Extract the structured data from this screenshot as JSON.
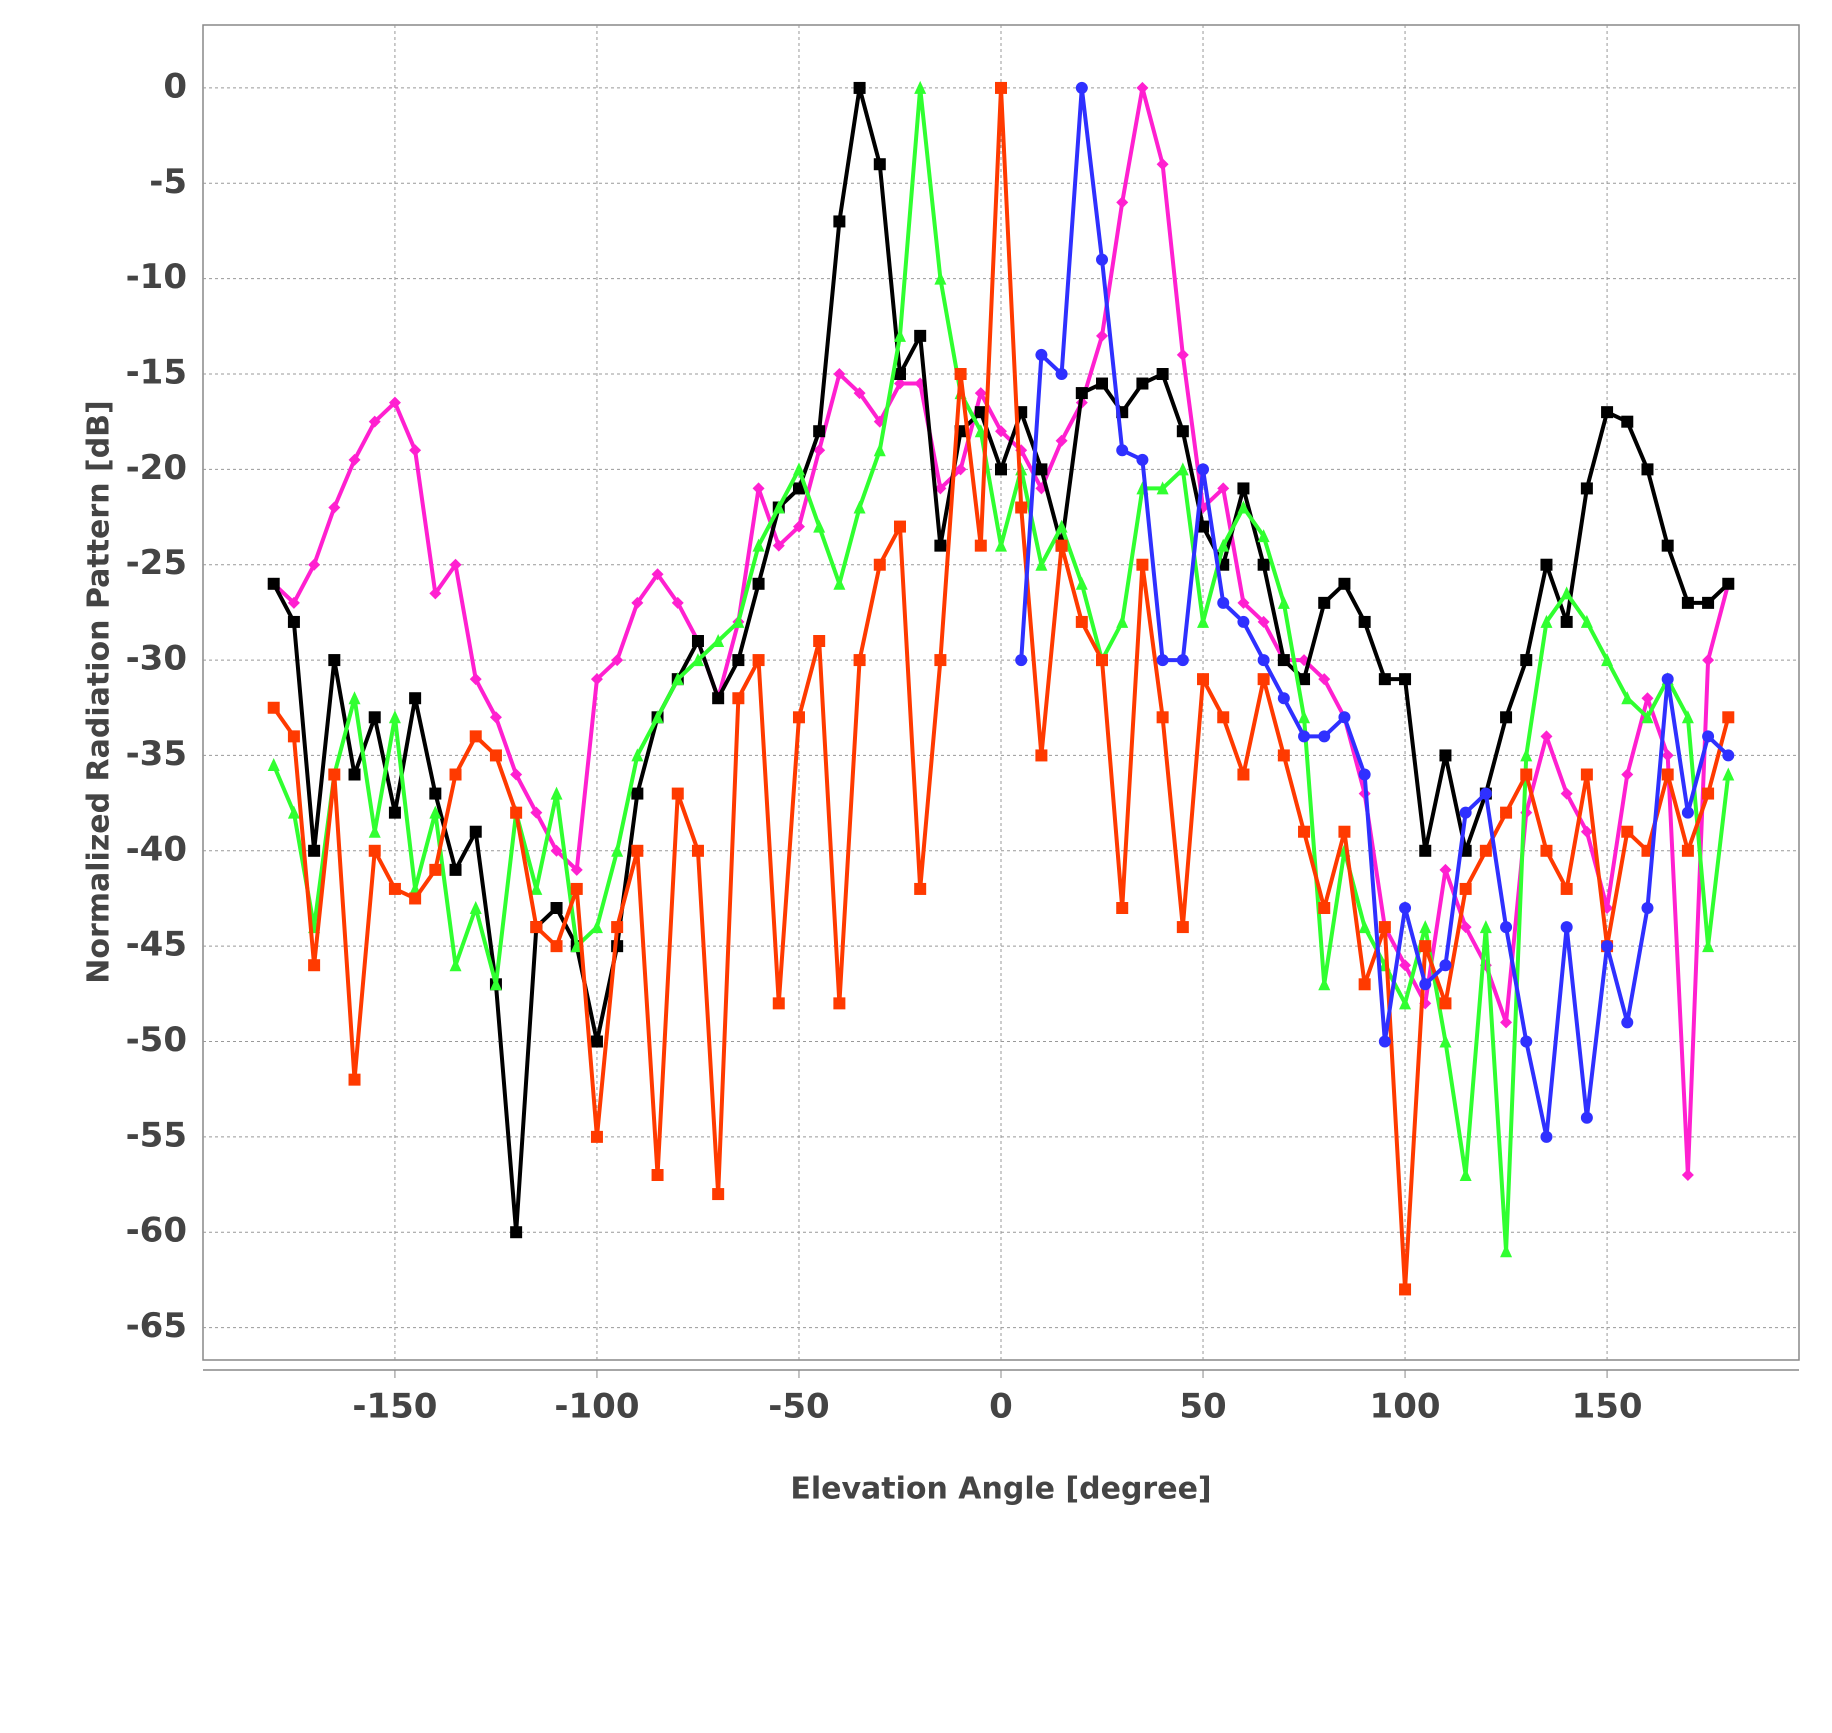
{
  "chart_data": {
    "type": "line",
    "x_label": "Elevation Angle [degree]",
    "y_label": "Normalized Radiation Pattern [dB]",
    "xlim": [
      -197.5,
      197.5
    ],
    "ylim": [
      -66.7,
      3.3
    ],
    "xticks": [
      -150,
      -100,
      -50,
      0,
      50,
      100,
      150
    ],
    "yticks": [
      0,
      -5,
      -10,
      -15,
      -20,
      -25,
      -30,
      -35,
      -40,
      -45,
      -50,
      -55,
      -60,
      -65
    ],
    "grid": true,
    "x": [
      -180,
      -175,
      -170,
      -165,
      -160,
      -155,
      -150,
      -145,
      -140,
      -135,
      -130,
      -125,
      -120,
      -115,
      -110,
      -105,
      -100,
      -95,
      -90,
      -85,
      -80,
      -75,
      -70,
      -65,
      -60,
      -55,
      -50,
      -45,
      -40,
      -35,
      -30,
      -25,
      -20,
      -15,
      -10,
      -5,
      0,
      5,
      10,
      15,
      20,
      25,
      30,
      35,
      40,
      45,
      50,
      55,
      60,
      65,
      70,
      75,
      80,
      85,
      90,
      95,
      100,
      105,
      110,
      115,
      120,
      125,
      130,
      135,
      140,
      145,
      150,
      155,
      160,
      165,
      170,
      175,
      180
    ],
    "series": [
      {
        "color": "#ff20d0",
        "marker": "diamond",
        "values": [
          -26,
          -27,
          -25,
          -22,
          -19.5,
          -17.5,
          -16.5,
          -19,
          -26.5,
          -25,
          -31,
          -33,
          -36,
          -38,
          -40,
          -41,
          -31,
          -30,
          -27,
          -25.5,
          -27,
          -29,
          -32,
          -28,
          -21,
          -24,
          -23,
          -19,
          -15,
          -16,
          -17.5,
          -15.5,
          -15.5,
          -21,
          -20,
          -16,
          -18,
          -19,
          -21,
          -18.5,
          -16.5,
          -13,
          -6,
          0,
          -4,
          -14,
          -22,
          -21,
          -27,
          -28,
          -30,
          -30,
          -31,
          -33,
          -37,
          -44,
          -46,
          -48,
          -41,
          -44,
          -46,
          -49,
          -38,
          -34,
          -37,
          -39,
          -43,
          -36,
          -32,
          -35,
          -57,
          -30,
          -26
        ]
      },
      {
        "color": "#000000",
        "marker": "square",
        "values": [
          -26,
          -28,
          -40,
          -30,
          -36,
          -33,
          -38,
          -32,
          -37,
          -41,
          -39,
          -47,
          -60,
          -44,
          -43,
          -45,
          -50,
          -45,
          -37,
          -33,
          -31,
          -29,
          -32,
          -30,
          -26,
          -22,
          -21,
          -18,
          -7,
          0,
          -4,
          -15,
          -13,
          -24,
          -18,
          -17,
          -20,
          -17,
          -20,
          -24,
          -16,
          -15.5,
          -17,
          -15.5,
          -15,
          -18,
          -23,
          -25,
          -21,
          -25,
          -30,
          -31,
          -27,
          -26,
          -28,
          -31,
          -31,
          -40,
          -35,
          -40,
          -37,
          -33,
          -30,
          -25,
          -28,
          -21,
          -17,
          -17.5,
          -20,
          -24,
          -27,
          -27,
          -26
        ]
      },
      {
        "color": "#30ff30",
        "marker": "triangle",
        "values": [
          -35.5,
          -38,
          -44,
          -36,
          -32,
          -39,
          -33,
          -42,
          -38,
          -46,
          -43,
          -47,
          -38,
          -42,
          -37,
          -45,
          -44,
          -40,
          -35,
          -33,
          -31,
          -30,
          -29,
          -28,
          -24,
          -22,
          -20,
          -23,
          -26,
          -22,
          -19,
          -13,
          0,
          -10,
          -16,
          -18,
          -24,
          -20,
          -25,
          -23,
          -26,
          -30,
          -28,
          -21,
          -21,
          -20,
          -28,
          -24,
          -22,
          -23.5,
          -27,
          -33,
          -47,
          -40,
          -44,
          -46,
          -48,
          -44,
          -50,
          -57,
          -44,
          -61,
          -35,
          -28,
          -26.5,
          -28,
          -30,
          -32,
          -33,
          -31,
          -33,
          -45,
          -36
        ]
      },
      {
        "color": "#ff3a00",
        "marker": "square",
        "values": [
          -32.5,
          -34,
          -46,
          -36,
          -52,
          -40,
          -42,
          -42.5,
          -41,
          -36,
          -34,
          -35,
          -38,
          -44,
          -45,
          -42,
          -55,
          -44,
          -40,
          -57,
          -37,
          -40,
          -58,
          -32,
          -30,
          -48,
          -33,
          -29,
          -48,
          -30,
          -25,
          -23,
          -42,
          -30,
          -15,
          -24,
          0,
          -22,
          -35,
          -24,
          -28,
          -30,
          -43,
          -25,
          -33,
          -44,
          -31,
          -33,
          -36,
          -31,
          -35,
          -39,
          -43,
          -39,
          -47,
          -44,
          -63,
          -45,
          -48,
          -42,
          -40,
          -38,
          -36,
          -40,
          -42,
          -36,
          -45,
          -39,
          -40,
          -36,
          -40,
          -37,
          -33
        ]
      },
      {
        "color": "#2f30ff",
        "marker": "circle",
        "values": [
          null,
          null,
          null,
          null,
          null,
          null,
          null,
          null,
          null,
          null,
          null,
          null,
          null,
          null,
          null,
          null,
          null,
          null,
          null,
          null,
          null,
          null,
          null,
          null,
          null,
          null,
          null,
          null,
          null,
          null,
          null,
          null,
          null,
          null,
          null,
          null,
          null,
          -30,
          -14,
          -15,
          0,
          -9,
          -19,
          -19.5,
          -30,
          -30,
          -20,
          -27,
          -28,
          -30,
          -32,
          -34,
          -34,
          -33,
          -36,
          -50,
          -43,
          -47,
          -46,
          -38,
          -37,
          -44,
          -50,
          -55,
          -44,
          -54,
          -45,
          -49,
          -43,
          -31,
          -38,
          -34,
          -35
        ]
      }
    ]
  }
}
